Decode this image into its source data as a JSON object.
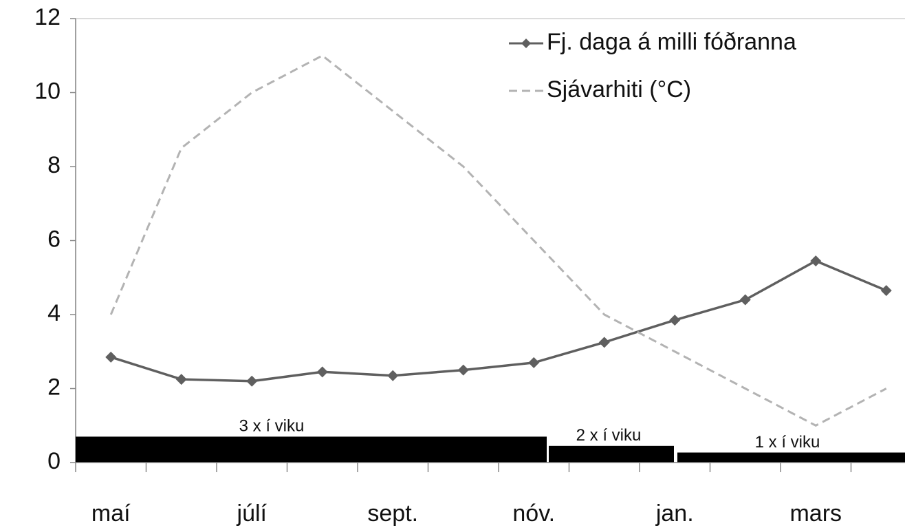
{
  "chart_data": {
    "type": "line",
    "categories": [
      "maí",
      null,
      "júlí",
      null,
      "sept.",
      null,
      "nóv.",
      null,
      "jan.",
      null,
      "mars",
      null
    ],
    "series": [
      {
        "name": "Fj. daga á milli fóðranna",
        "color": "#5f5f5f",
        "marker": "diamond",
        "values": [
          2.85,
          2.25,
          2.2,
          2.45,
          2.35,
          2.5,
          2.7,
          3.25,
          3.85,
          4.4,
          5.45,
          4.65
        ]
      },
      {
        "name": "Sjávarhiti (°C)",
        "color": "#b3b3b3",
        "dashed": true,
        "values": [
          4,
          8.5,
          10,
          11,
          9.5,
          8,
          6,
          4,
          3,
          2,
          1,
          2
        ]
      }
    ],
    "annotations": [
      {
        "label": "3 x í viku",
        "value": 0.7
      },
      {
        "label": "2 x í viku",
        "value": 0.45
      },
      {
        "label": "1 x í viku",
        "value": 0.27
      }
    ],
    "ylim": [
      0,
      12
    ],
    "yticks": [
      0,
      2,
      4,
      6,
      8,
      10,
      12
    ],
    "legend": "top-right"
  }
}
